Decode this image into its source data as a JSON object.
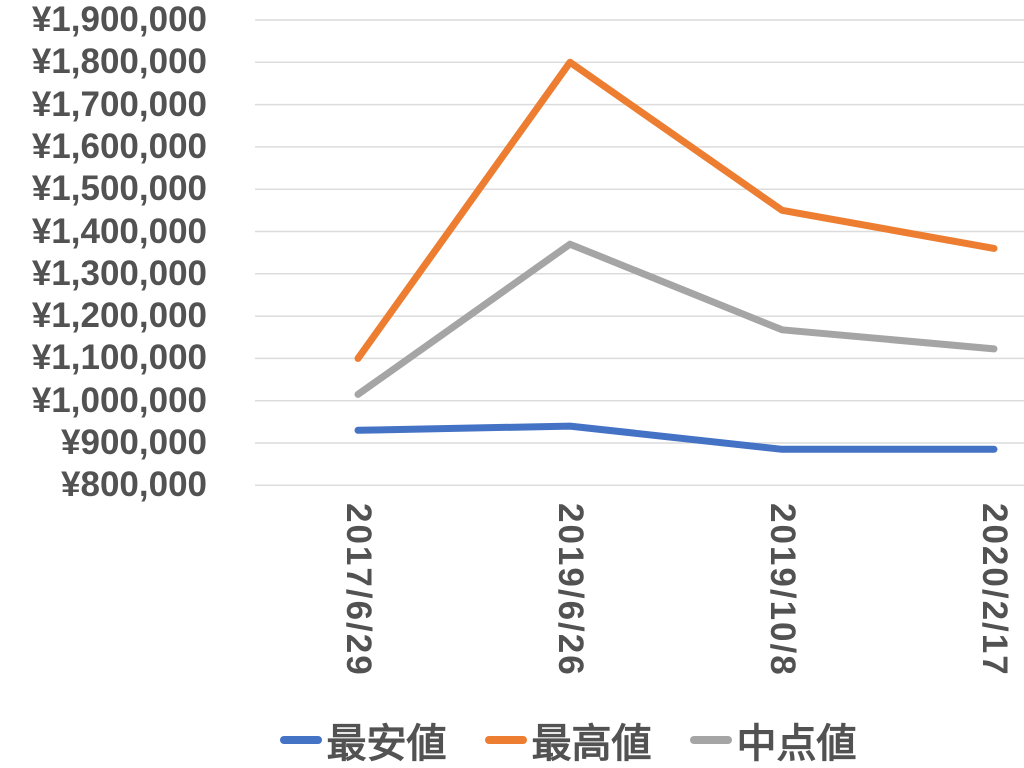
{
  "chart_data": {
    "type": "line",
    "title": "",
    "categories": [
      "2017/6/29",
      "2019/6/26",
      "2019/10/8",
      "2020/2/17"
    ],
    "series": [
      {
        "name": "最安値",
        "color": "#4472C4",
        "values": [
          930000,
          940000,
          885000,
          885000
        ]
      },
      {
        "name": "最高値",
        "color": "#ED7D31",
        "values": [
          1100000,
          1800000,
          1450000,
          1360000
        ]
      },
      {
        "name": "中点値",
        "color": "#A5A5A5",
        "values": [
          1015000,
          1370000,
          1167500,
          1122500
        ]
      }
    ],
    "y_axis": {
      "min": 800000,
      "max": 1900000,
      "step": 100000,
      "currency_symbol": "¥",
      "tick_labels": [
        "¥1,900,000",
        "¥1,800,000",
        "¥1,700,000",
        "¥1,600,000",
        "¥1,500,000",
        "¥1,400,000",
        "¥1,300,000",
        "¥1,200,000",
        "¥1,100,000",
        "¥1,000,000",
        "¥900,000",
        "¥800,000"
      ]
    },
    "x_axis": {
      "tick_labels": [
        "2017/6/29",
        "2019/6/26",
        "2019/10/8",
        "2020/2/17"
      ],
      "label_rotation_degrees": 90
    },
    "legend": {
      "position": "bottom",
      "entries": [
        "最安値",
        "最高値",
        "中点値"
      ]
    },
    "grid": true,
    "ylim": [
      800000,
      1900000
    ]
  },
  "colors": {
    "background": "#FFFFFF",
    "grid": "#DCDCDC",
    "text": "#525252",
    "series_lowest": "#4472C4",
    "series_highest": "#ED7D31",
    "series_midpoint": "#A5A5A5"
  }
}
